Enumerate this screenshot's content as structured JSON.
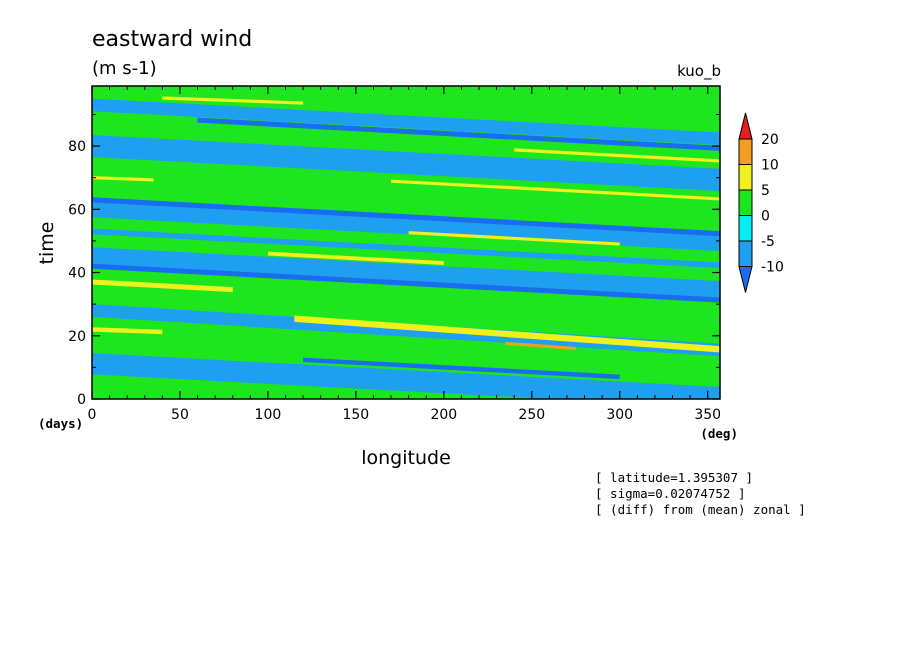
{
  "chart_data": {
    "type": "heatmap",
    "title": "eastward wind",
    "units": "(m s-1)",
    "experiment": "kuo_b",
    "xlabel": "longitude",
    "ylabel": "time",
    "x_unit": "(deg)",
    "y_unit": "(days)",
    "xlim": [
      0,
      357
    ],
    "ylim": [
      0,
      99
    ],
    "x_ticks": [
      0,
      50,
      100,
      150,
      200,
      250,
      300,
      350
    ],
    "y_ticks": [
      0,
      20,
      40,
      60,
      80
    ],
    "colorbar": {
      "levels": [
        "-10",
        "-5",
        "0",
        "5",
        "10",
        "20"
      ],
      "colors": [
        "#1a6cf0",
        "#1e9ff0",
        "#00f0f0",
        "#1ee61e",
        "#f0f01e",
        "#f0a01e",
        "#e61e1e"
      ]
    },
    "bands": [
      {
        "t": 3,
        "slope": -0.04,
        "width": 1.6,
        "level": "5",
        "x0": 120,
        "x1": 260
      },
      {
        "t": 9,
        "slope": -0.03,
        "width": 2.4,
        "level": "-5",
        "x0": 0,
        "x1": 357
      },
      {
        "t": 16,
        "slope": -0.03,
        "width": 1.4,
        "level": "-10",
        "x0": 120,
        "x1": 300
      },
      {
        "t": 22,
        "slope": -0.02,
        "width": 1.4,
        "level": "5",
        "x0": 0,
        "x1": 40
      },
      {
        "t": 30,
        "slope": -0.04,
        "width": 2.0,
        "level": "5",
        "x0": 115,
        "x1": 357
      },
      {
        "t": 27,
        "slope": -0.04,
        "width": 1.0,
        "level": "10",
        "x0": 235,
        "x1": 275
      },
      {
        "t": 37,
        "slope": -0.03,
        "width": 1.6,
        "level": "5",
        "x0": 0,
        "x1": 80
      },
      {
        "t": 42,
        "slope": -0.03,
        "width": 1.6,
        "level": "-10",
        "x0": 0,
        "x1": 357
      },
      {
        "t": 49,
        "slope": -0.03,
        "width": 1.2,
        "level": "5",
        "x0": 100,
        "x1": 200
      },
      {
        "t": 53,
        "slope": -0.03,
        "width": 1.8,
        "level": "-5",
        "x0": 0,
        "x1": 357
      },
      {
        "t": 58,
        "slope": -0.03,
        "width": 1.0,
        "level": "5",
        "x0": 180,
        "x1": 300
      },
      {
        "t": 63,
        "slope": -0.03,
        "width": 1.6,
        "level": "-10",
        "x0": 0,
        "x1": 357
      },
      {
        "t": 70,
        "slope": -0.02,
        "width": 1.0,
        "level": "5",
        "x0": 0,
        "x1": 35
      },
      {
        "t": 74,
        "slope": -0.03,
        "width": 1.0,
        "level": "5",
        "x0": 170,
        "x1": 357
      },
      {
        "t": 78,
        "slope": -0.03,
        "width": 1.8,
        "level": "-5",
        "x0": 0,
        "x1": 357
      },
      {
        "t": 86,
        "slope": -0.03,
        "width": 1.0,
        "level": "5",
        "x0": 240,
        "x1": 357
      },
      {
        "t": 90,
        "slope": -0.03,
        "width": 1.6,
        "level": "-10",
        "x0": 60,
        "x1": 357
      },
      {
        "t": 96,
        "slope": -0.02,
        "width": 1.0,
        "level": "5",
        "x0": 40,
        "x1": 120
      }
    ]
  },
  "annotations": {
    "latitude": "[ latitude=1.395307 ]",
    "sigma": "[ sigma=0.02074752 ]",
    "diff": "[ (diff) from (mean) zonal ]"
  }
}
